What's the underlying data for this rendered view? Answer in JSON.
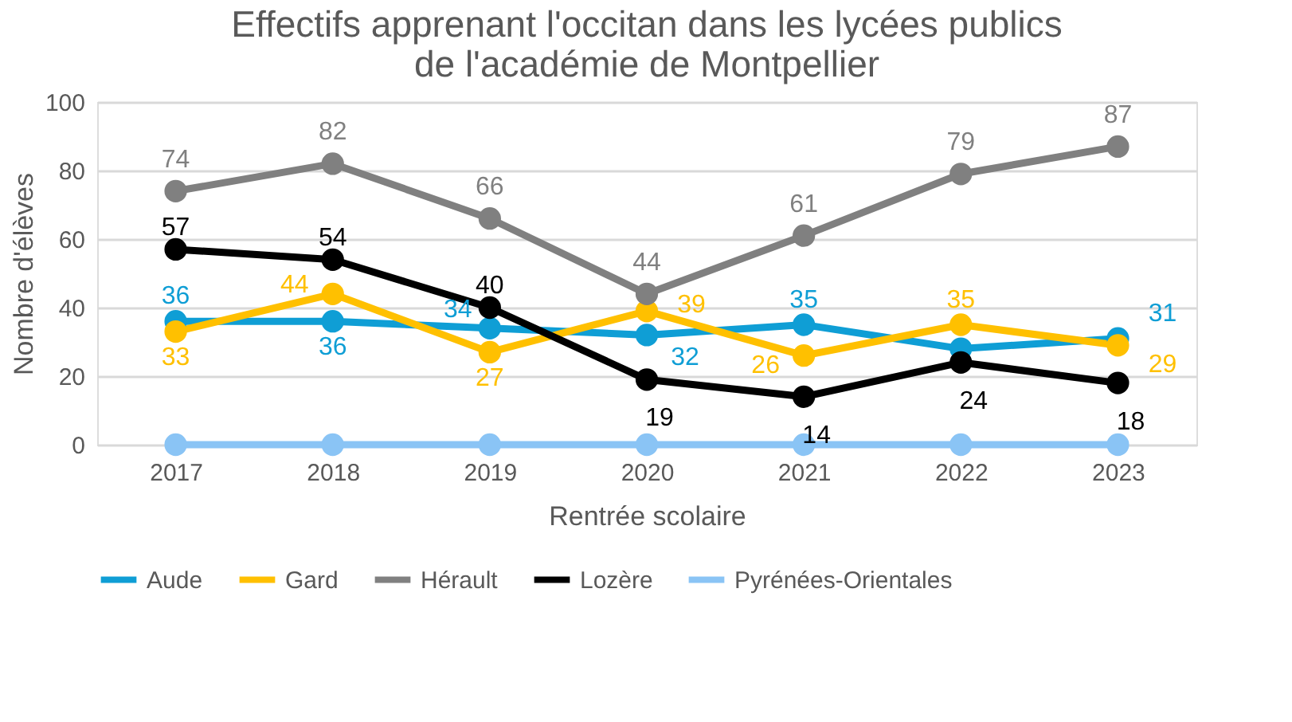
{
  "chart_data": {
    "type": "line",
    "title": [
      "Effectifs apprenant l'occitan dans les lycées publics",
      "de l'académie de Montpellier"
    ],
    "xlabel": "Rentrée scolaire",
    "ylabel": "Nombre d'élèves",
    "categories": [
      "2017",
      "2018",
      "2019",
      "2020",
      "2021",
      "2022",
      "2023"
    ],
    "ylim": [
      0,
      100
    ],
    "yticks": [
      0,
      20,
      40,
      60,
      80,
      100
    ],
    "grid": "y",
    "legend": "bottom",
    "marker": "circle",
    "line_style": "solid",
    "series": [
      {
        "name": "Aude",
        "color": "#0f9ed5",
        "values": [
          36,
          36,
          34,
          32,
          35,
          28,
          31
        ],
        "value_labels": [
          "36",
          "36",
          "34",
          "32",
          "35",
          null,
          "31"
        ]
      },
      {
        "name": "Gard",
        "color": "#ffc000",
        "values": [
          33,
          44,
          27,
          39,
          26,
          35,
          29
        ],
        "value_labels": [
          "33",
          "44",
          "27",
          "39",
          "26",
          "35",
          "29"
        ]
      },
      {
        "name": "Hérault",
        "color": "#808080",
        "values": [
          74,
          82,
          66,
          44,
          61,
          79,
          87
        ],
        "value_labels": [
          "74",
          "82",
          "66",
          "44",
          "61",
          "79",
          "87"
        ]
      },
      {
        "name": "Lozère",
        "color": "#000000",
        "values": [
          57,
          54,
          40,
          19,
          14,
          24,
          18
        ],
        "value_labels": [
          "57",
          "54",
          "40",
          "19",
          "14",
          "24",
          "18"
        ]
      },
      {
        "name": "Pyrénées-Orientales",
        "color": "#8ac4f5",
        "values": [
          0,
          0,
          0,
          0,
          0,
          0,
          0
        ],
        "value_labels": [
          null,
          null,
          null,
          null,
          null,
          null,
          null
        ]
      }
    ]
  }
}
